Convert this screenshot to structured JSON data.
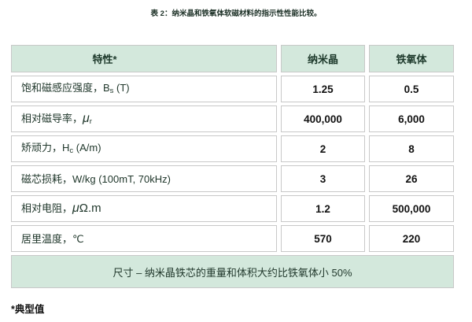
{
  "caption": "表 2：纳米晶和铁氧体软磁材料的指示性性能比较。",
  "table": {
    "columns": [
      "特性*",
      "纳米晶",
      "铁氧体"
    ],
    "rows": [
      {
        "label": [
          {
            "t": "text",
            "v": "饱和磁感应强度，B"
          },
          {
            "t": "sub",
            "v": "s"
          },
          {
            "t": "text",
            "v": " (T)"
          }
        ],
        "label_plain": "饱和磁感应强度，Bs (T)",
        "values": [
          "1.25",
          "0.5"
        ]
      },
      {
        "label": [
          {
            "t": "text",
            "v": "相对磁导率，"
          },
          {
            "t": "sym",
            "v": "μ"
          },
          {
            "t": "sub",
            "v": "r"
          }
        ],
        "label_plain": "相对磁导率，μr",
        "values": [
          "400,000",
          "6,000"
        ]
      },
      {
        "label": [
          {
            "t": "text",
            "v": "矫顽力，H"
          },
          {
            "t": "sub",
            "v": "c"
          },
          {
            "t": "text",
            "v": " (A/m)"
          }
        ],
        "label_plain": "矫顽力，Hc (A/m)",
        "values": [
          "2",
          "8"
        ]
      },
      {
        "label": [
          {
            "t": "text",
            "v": "磁芯损耗，W/kg (100mT, 70kHz)"
          }
        ],
        "label_plain": "磁芯损耗，W/kg (100mT, 70kHz)",
        "values": [
          "3",
          "26"
        ]
      },
      {
        "label": [
          {
            "t": "text",
            "v": "相对电阻，"
          },
          {
            "t": "sym",
            "v": "μ"
          },
          {
            "t": "symu",
            "v": "Ω.m"
          }
        ],
        "label_plain": "相对电阻，μΩ.m",
        "values": [
          "1.2",
          "500,000"
        ]
      },
      {
        "label": [
          {
            "t": "text",
            "v": "居里温度，℃"
          }
        ],
        "label_plain": "居里温度，℃",
        "values": [
          "570",
          "220"
        ]
      }
    ],
    "size_note": "尺寸 – 纳米晶铁芯的重量和体积大约比铁氧体小 50%"
  },
  "footnote": "*典型值",
  "colors": {
    "header_bg": "#d3e8dc",
    "border": "#c8c8c8",
    "label_text": "#21382c",
    "number_text": "#121212"
  }
}
